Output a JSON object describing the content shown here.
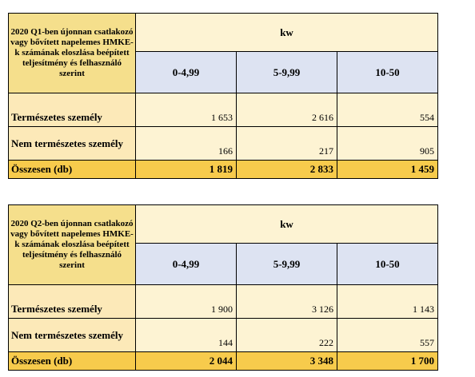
{
  "tables": [
    {
      "header": "2020 Q1-ben újonnan csatlakozó vagy bővített napelemes HMKE-k számának eloszlása beépített teljesítmény és felhasználó szerint",
      "unit": "kw",
      "bands": [
        "0-4,99",
        "5-9,99",
        "10-50"
      ],
      "rows": [
        {
          "label": "Természetes személy",
          "values": [
            "1 653",
            "2 616",
            "554"
          ]
        },
        {
          "label": "Nem természetes személy",
          "values": [
            "166",
            "217",
            "905"
          ]
        }
      ],
      "total": {
        "label": "Összesen (db)",
        "values": [
          "1 819",
          "2 833",
          "1 459"
        ]
      }
    },
    {
      "header": "2020 Q2-ben újonnan csatlakozó vagy bővített napelemes HMKE-k számának eloszlása beépített teljesítmény és felhasználó szerint",
      "unit": "kw",
      "bands": [
        "0-4,99",
        "5-9,99",
        "10-50"
      ],
      "rows": [
        {
          "label": "Természetes személy",
          "values": [
            "1 900",
            "3 126",
            "1 143"
          ]
        },
        {
          "label": "Nem természetes személy",
          "values": [
            "144",
            "222",
            "557"
          ]
        }
      ],
      "total": {
        "label": "Összesen (db)",
        "values": [
          "2 044",
          "3 348",
          "1 700"
        ]
      }
    }
  ]
}
